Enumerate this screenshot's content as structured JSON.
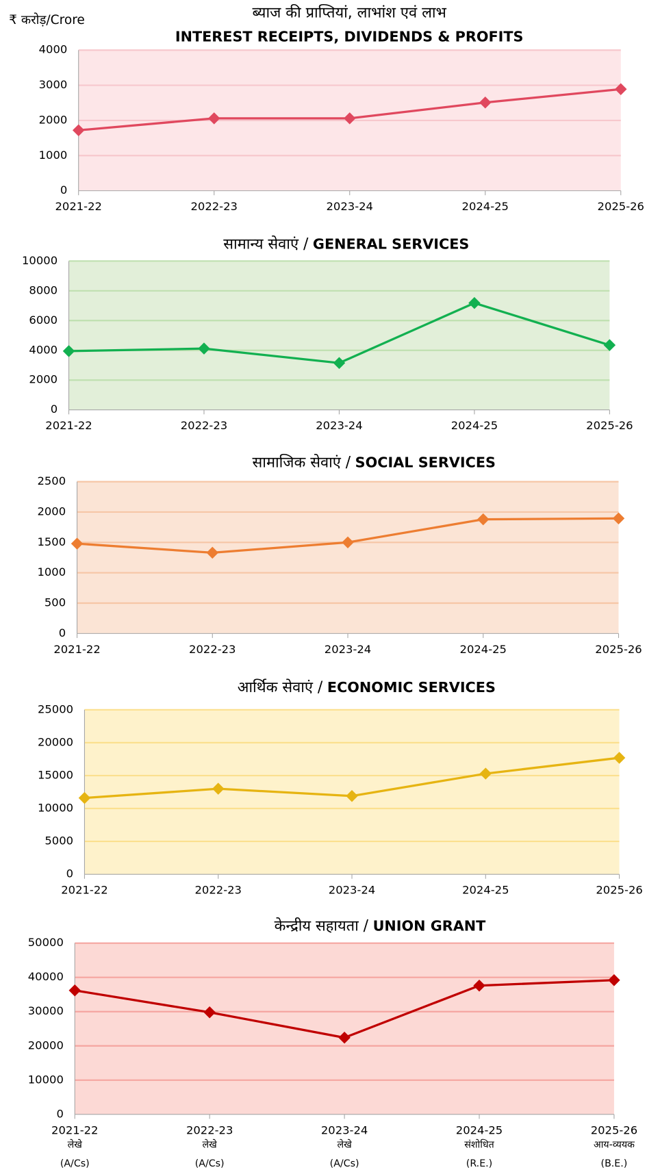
{
  "unit": "₹ करोड़/Crore",
  "chart_data": [
    {
      "type": "line",
      "title": "ब्याज की प्राप्तियां, लाभांश एवं लाभ",
      "subtitle": "INTEREST RECEIPTS, DIVIDENDS & PROFITS",
      "categories": [
        "2021-22",
        "2022-23",
        "2023-24",
        "2024-25",
        "2025-26"
      ],
      "series": [
        {
          "color": "#e0485e",
          "values": [
            1720,
            2060,
            2060,
            2510,
            2890
          ]
        }
      ],
      "background": "#fde6e8",
      "grid_color": "#f7c8cd",
      "ylim": [
        0,
        4000
      ],
      "yticks": [
        0,
        1000,
        2000,
        3000,
        4000
      ],
      "grid": true
    },
    {
      "type": "line",
      "title": "सामान्य सेवाएं /",
      "subtitle": "GENERAL SERVICES",
      "categories": [
        "2021-22",
        "2022-23",
        "2023-24",
        "2024-25",
        "2025-26"
      ],
      "series": [
        {
          "color": "#12b050",
          "values": [
            3950,
            4120,
            3150,
            7180,
            4350
          ]
        }
      ],
      "background": "#e2efd9",
      "grid_color": "#bfe0b0",
      "ylim": [
        0,
        10000
      ],
      "yticks": [
        0,
        2000,
        4000,
        6000,
        8000,
        10000
      ],
      "grid": true
    },
    {
      "type": "line",
      "title": "सामाजिक सेवाएं /",
      "subtitle": "SOCIAL SERVICES",
      "categories": [
        "2021-22",
        "2022-23",
        "2023-24",
        "2024-25",
        "2025-26"
      ],
      "series": [
        {
          "color": "#ed7d31",
          "values": [
            1480,
            1330,
            1500,
            1880,
            1895
          ]
        }
      ],
      "background": "#fbe4d5",
      "grid_color": "#f6c6a6",
      "ylim": [
        0,
        2500
      ],
      "yticks": [
        0,
        500,
        1000,
        1500,
        2000,
        2500
      ],
      "grid": true
    },
    {
      "type": "line",
      "title": "आर्थिक सेवाएं /",
      "subtitle": "ECONOMIC SERVICES",
      "categories": [
        "2021-22",
        "2022-23",
        "2023-24",
        "2024-25",
        "2025-26"
      ],
      "series": [
        {
          "color": "#e6b412",
          "values": [
            11600,
            13000,
            11900,
            15300,
            17700
          ]
        }
      ],
      "background": "#fef2cb",
      "grid_color": "#fbe08e",
      "ylim": [
        0,
        25000
      ],
      "yticks": [
        0,
        5000,
        10000,
        15000,
        20000,
        25000
      ],
      "grid": true
    },
    {
      "type": "line",
      "title": "केन्द्रीय सहायता /",
      "subtitle": "UNION GRANT",
      "categories": [
        "2021-22",
        "2022-23",
        "2023-24",
        "2024-25",
        "2025-26"
      ],
      "category_notes": [
        [
          "लेखे",
          "(A/Cs)"
        ],
        [
          "लेखे",
          "(A/Cs)"
        ],
        [
          "लेखे",
          "(A/Cs)"
        ],
        [
          "संशोधित",
          "(R.E.)"
        ],
        [
          "आय-व्ययक",
          "(B.E.)"
        ]
      ],
      "series": [
        {
          "color": "#c00000",
          "values": [
            36200,
            29800,
            22400,
            37600,
            39200
          ]
        }
      ],
      "background": "#fcd9d5",
      "grid_color": "#f5a5a0",
      "ylim": [
        0,
        50000
      ],
      "yticks": [
        0,
        10000,
        20000,
        30000,
        40000,
        50000
      ],
      "grid": true
    }
  ]
}
